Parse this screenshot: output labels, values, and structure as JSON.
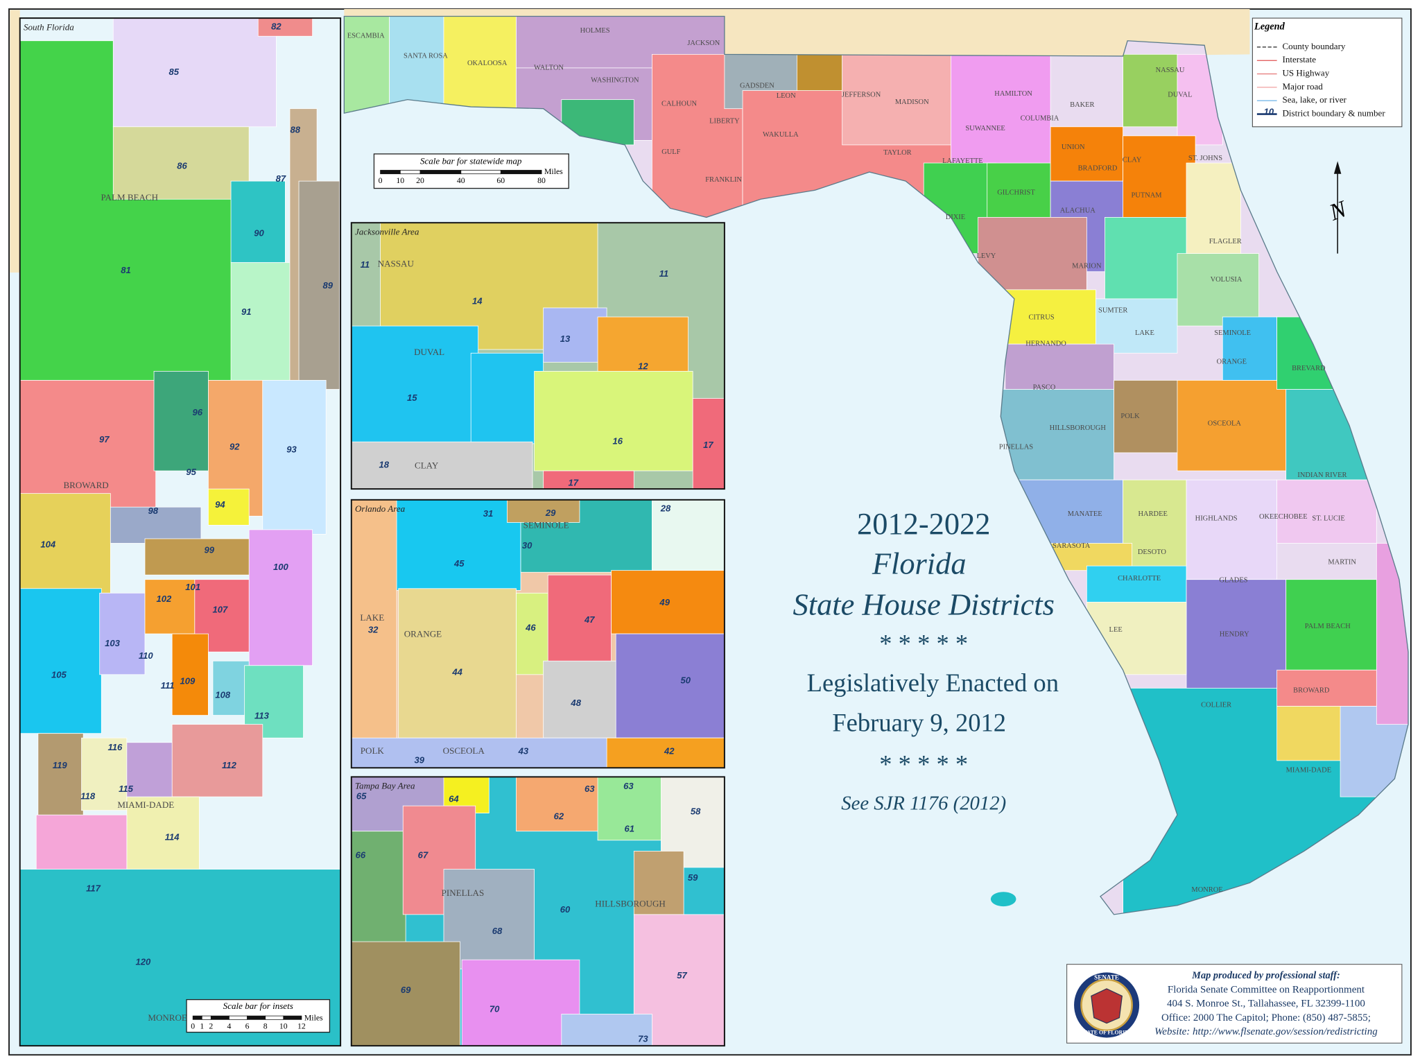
{
  "title": {
    "years": "2012-2022",
    "line1": "Florida",
    "line2": "State House Districts",
    "stars1": "* * * * *",
    "enacted": "Legislatively Enacted on",
    "date": "February 9, 2012",
    "stars2": "* * * * *",
    "reference": "See  SJR 1176 (2012)"
  },
  "legend": {
    "title": "Legend",
    "items": [
      "County boundary",
      "Interstate",
      "US Highway",
      "Major road",
      "Sea, lake, or river",
      "District boundary & number"
    ],
    "district_sample": "10"
  },
  "north": "N",
  "statewide_scale": {
    "title": "Scale bar for statewide map",
    "unit": "Miles",
    "ticks": [
      "0",
      "10",
      "20",
      "40",
      "60",
      "80"
    ]
  },
  "inset_scale": {
    "title": "Scale bar for insets",
    "unit": "Miles",
    "ticks": [
      "0",
      "1",
      "2",
      "4",
      "6",
      "8",
      "10",
      "12"
    ]
  },
  "insets": [
    {
      "title": "South Florida",
      "labels": [
        "82",
        "85",
        "88",
        "86",
        "PALM BEACH",
        "87",
        "90",
        "81",
        "89",
        "91",
        "96",
        "97",
        "92",
        "93",
        "95",
        "BROWARD",
        "94",
        "98",
        "104",
        "99",
        "100",
        "101",
        "102",
        "107",
        "103",
        "110",
        "105",
        "109",
        "111",
        "108",
        "113",
        "116",
        "112",
        "119",
        "115",
        "118",
        "MIAMI-DADE",
        "114",
        "117",
        "120",
        "MONROE"
      ]
    },
    {
      "title": "Jacksonville Area",
      "labels": [
        "11",
        "NASSAU",
        "11",
        "14",
        "13",
        "DUVAL",
        "12",
        "15",
        "16",
        "17",
        "18",
        "CLAY",
        "17"
      ]
    },
    {
      "title": "Orlando Area",
      "labels": [
        "31",
        "29",
        "28",
        "SEMINOLE",
        "30",
        "45",
        "49",
        "LAKE",
        "32",
        "47",
        "46",
        "ORANGE",
        "44",
        "50",
        "48",
        "POLK",
        "OSCEOLA",
        "43",
        "42",
        "39"
      ]
    },
    {
      "title": "Tampa Bay Area",
      "labels": [
        "65",
        "64",
        "63",
        "63",
        "58",
        "62",
        "61",
        "66",
        "67",
        "59",
        "PINELLAS",
        "HILLSBOROUGH",
        "60",
        "68",
        "57",
        "69",
        "70",
        "73"
      ]
    }
  ],
  "main_map": {
    "labels": [
      "ESCAMBIA",
      "SANTA ROSA",
      "OKALOOSA",
      "HOLMES",
      "JACKSON",
      "WALTON",
      "WASHINGTON",
      "CALHOUN",
      "GADSDEN",
      "LEON",
      "JEFFERSON",
      "MADISON",
      "HAMILTON",
      "COLUMBIA",
      "BAKER",
      "NASSAU",
      "DUVAL",
      "LIBERTY",
      "WAKULLA",
      "GULF",
      "TAYLOR",
      "SUWANNEE",
      "LAFAYETTE",
      "FRANKLIN",
      "UNION",
      "BRADFORD",
      "CLAY",
      "ST. JOHNS",
      "DIXIE",
      "GILCHRIST",
      "ALACHUA",
      "PUTNAM",
      "FLAGLER",
      "LEVY",
      "MARION",
      "VOLUSIA",
      "CITRUS",
      "SUMTER",
      "LAKE",
      "SEMINOLE",
      "HERNANDO",
      "BREVARD",
      "PASCO",
      "ORANGE",
      "POLK",
      "OSCEOLA",
      "PINELLAS",
      "HILLSBOROUGH",
      "MANATEE",
      "HARDEE",
      "HIGHLANDS",
      "OKEECHOBEE",
      "INDIAN RIVER",
      "ST. LUCIE",
      "SARASOTA",
      "DESOTO",
      "MARTIN",
      "CHARLOTTE",
      "GLADES",
      "LEE",
      "HENDRY",
      "PALM BEACH",
      "COLLIER",
      "BROWARD",
      "MIAMI-DADE",
      "MONROE"
    ]
  },
  "credits": {
    "lines": [
      "Map produced by professional staff:",
      "Florida Senate Committee on Reapportionment",
      "404 S. Monroe St., Tallahassee, FL 32399-1100",
      "Office: 2000 The Capitol; Phone: (850) 487-5855;",
      "Website: http://www.flsenate.gov/session/redistricting"
    ]
  },
  "seal": {
    "top": "SENATE",
    "bottom": "STATE OF FLORIDA"
  }
}
